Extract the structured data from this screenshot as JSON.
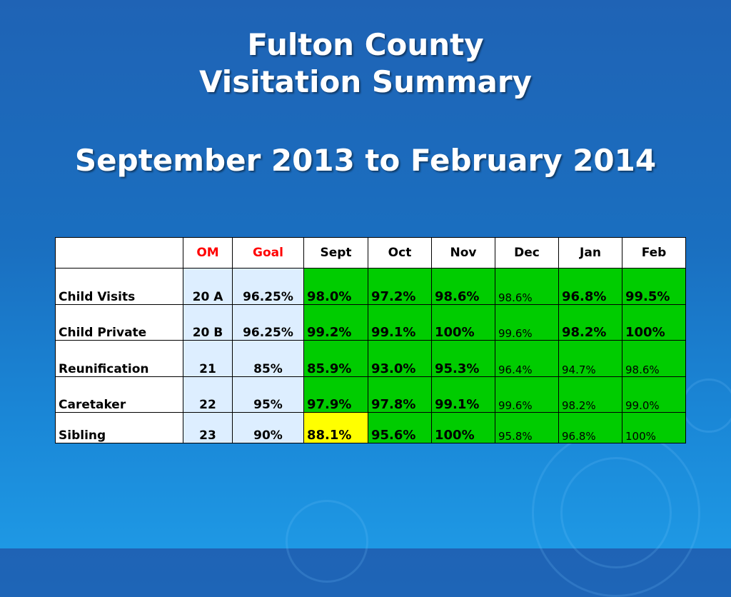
{
  "slide": {
    "title_line1": "Fulton County",
    "title_line2": "Visitation Summary",
    "subtitle": "September 2013 to February 2014"
  },
  "table": {
    "headers": [
      "OM",
      "Goal",
      "Sept",
      "Oct",
      "Nov",
      "Dec",
      "Jan",
      "Feb"
    ],
    "rows": [
      {
        "label": "Child Visits",
        "om": "20 A",
        "goal": "96.25%",
        "values": [
          "98.0%",
          "97.2%",
          "98.6%",
          "98.6%",
          "96.8%",
          "99.5%"
        ]
      },
      {
        "label": "Child Private",
        "om": "20 B",
        "goal": "96.25%",
        "values": [
          "99.2%",
          "99.1%",
          "100%",
          "99.6%",
          "98.2%",
          "100%"
        ]
      },
      {
        "label": "Reunification",
        "om": "21",
        "goal": "85%",
        "values": [
          "85.9%",
          "93.0%",
          "95.3%",
          "96.4%",
          "94.7%",
          "98.6%"
        ]
      },
      {
        "label": "Caretaker",
        "om": "22",
        "goal": "95%",
        "values": [
          "97.9%",
          "97.8%",
          "99.1%",
          "99.6%",
          "98.2%",
          "99.0%"
        ]
      },
      {
        "label": "Sibling",
        "om": "23",
        "goal": "90%",
        "values": [
          "88.1%",
          "95.6%",
          "100%",
          "95.8%",
          "96.8%",
          "100%"
        ]
      }
    ]
  },
  "colors": {
    "background": "#1a6fc0",
    "met_goal": "#00cc00",
    "below_goal": "#ffff00",
    "header_accent": "#ff0000",
    "om_goal_fill": "#ddeeff"
  }
}
